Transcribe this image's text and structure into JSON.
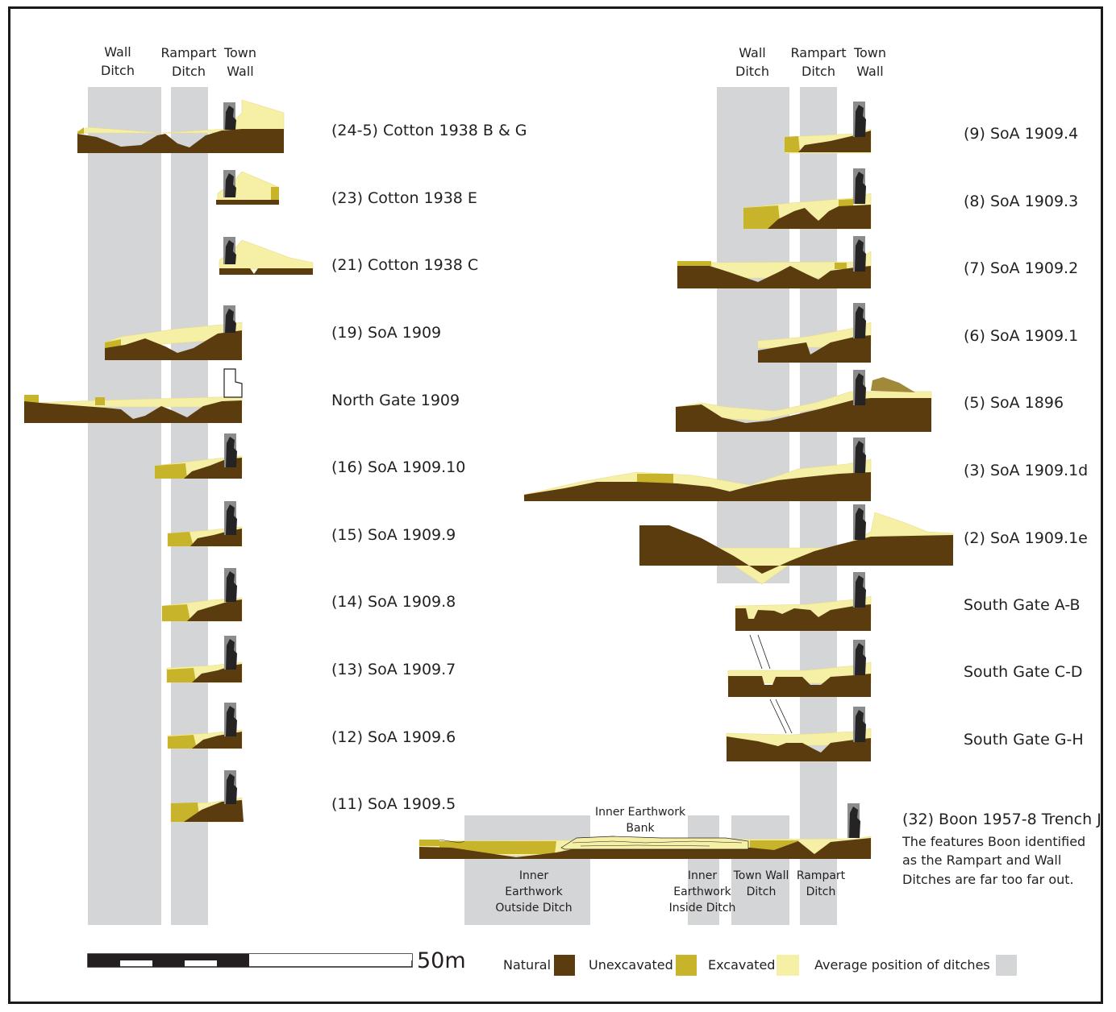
{
  "colors": {
    "natural": "#5a3c0e",
    "unexcavated": "#c8b42a",
    "excavated": "#f6f0a6",
    "ditch": "#d4d5d7",
    "wall": "#262324",
    "wall_back": "#8b8c8e",
    "text": "#231f20"
  },
  "column_headers": {
    "left": [
      {
        "lines": [
          "Wall",
          "Ditch"
        ]
      },
      {
        "lines": [
          "Rampart",
          "Ditch"
        ]
      },
      {
        "lines": [
          "Town",
          "Wall"
        ]
      }
    ],
    "right": [
      {
        "lines": [
          "Wall",
          "Ditch"
        ]
      },
      {
        "lines": [
          "Rampart",
          "Ditch"
        ]
      },
      {
        "lines": [
          "Town",
          "Wall"
        ]
      }
    ]
  },
  "left_sections": [
    {
      "label": "(24-5) Cotton 1938 B & G"
    },
    {
      "label": "(23) Cotton 1938 E"
    },
    {
      "label": "(21) Cotton 1938 C"
    },
    {
      "label": "(19) SoA 1909"
    },
    {
      "label": "North Gate 1909"
    },
    {
      "label": "(16) SoA 1909.10"
    },
    {
      "label": "(15) SoA 1909.9"
    },
    {
      "label": "(14) SoA 1909.8"
    },
    {
      "label": "(13) SoA 1909.7"
    },
    {
      "label": "(12) SoA 1909.6"
    },
    {
      "label": "(11) SoA 1909.5"
    }
  ],
  "right_sections": [
    {
      "label": "(9) SoA 1909.4"
    },
    {
      "label": "(8) SoA 1909.3"
    },
    {
      "label": "(7) SoA 1909.2"
    },
    {
      "label": "(6) SoA 1909.1"
    },
    {
      "label": "(5) SoA 1896"
    },
    {
      "label": "(3) SoA 1909.1d"
    },
    {
      "label": "(2) SoA 1909.1e"
    },
    {
      "label": "South Gate A-B"
    },
    {
      "label": "South Gate C-D"
    },
    {
      "label": "South Gate G-H"
    }
  ],
  "boon": {
    "label": "(32) Boon 1957-8 Trench J",
    "note_lines": [
      "The features Boon identified",
      "as the Rampart and Wall",
      "Ditches are far too far out."
    ],
    "bank_lines": [
      "Inner Earthwork",
      "Bank"
    ],
    "ditch_labels": [
      {
        "lines": [
          "Inner",
          "Earthwork",
          "Outside Ditch"
        ]
      },
      {
        "lines": [
          "Inner",
          "Earthwork",
          "Inside Ditch"
        ]
      },
      {
        "lines": [
          "Town Wall",
          "Ditch"
        ]
      },
      {
        "lines": [
          "Rampart",
          "Ditch"
        ]
      }
    ]
  },
  "scale_bar": {
    "label": "50m"
  },
  "legend": [
    {
      "label": "Natural",
      "color": "#5a3c0e"
    },
    {
      "label": "Unexcavated",
      "color": "#c8b42a"
    },
    {
      "label": "Excavated",
      "color": "#f6f0a6"
    },
    {
      "label": "Average position of ditches",
      "color": "#d4d5d7"
    }
  ]
}
